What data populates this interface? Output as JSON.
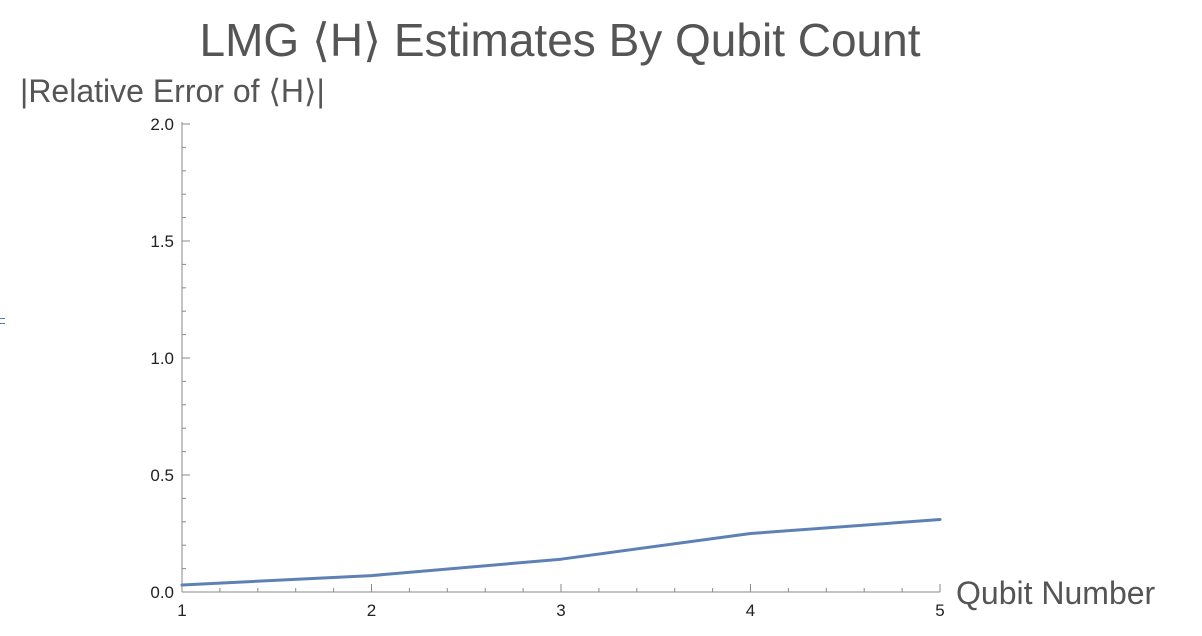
{
  "chart_data": {
    "type": "line",
    "title": "LMG ⟨H⟩ Estimates By Qubit Count",
    "xlabel": "Qubit Number",
    "ylabel": "|Relative Error of ⟨H⟩|",
    "x": [
      1,
      2,
      3,
      4,
      5
    ],
    "series": [
      {
        "values": [
          0.03,
          0.07,
          0.14,
          0.25,
          0.31
        ]
      }
    ],
    "xlim": [
      1,
      5
    ],
    "ylim": [
      0,
      2
    ],
    "xticks": [
      "1",
      "2",
      "3",
      "4",
      "5"
    ],
    "yticks": [
      "0.0",
      "0.5",
      "1.0",
      "1.5",
      "2.0"
    ],
    "grid": false,
    "colors": {
      "series": "#5e81b5",
      "text": "#555555",
      "axis": "#8a8a8a"
    }
  }
}
